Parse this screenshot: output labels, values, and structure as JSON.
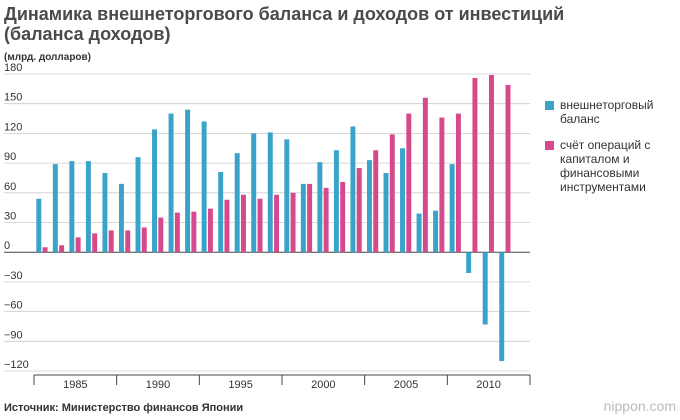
{
  "header": {
    "title": "Динамика внешнеторгового баланса и доходов от инвестиций (баланса доходов)",
    "unit": "(млрд. долларов)"
  },
  "footer": {
    "source": "Источник: Министерство финансов Японии",
    "brand": "nippon.com"
  },
  "colors": {
    "trade": "#3aa3c9",
    "capital": "#d6498c",
    "axis": "#444444",
    "grid": "#cccccc"
  },
  "chart_data": {
    "type": "bar",
    "title": "Динамика внешнеторгового баланса и доходов от инвестиций (баланса доходов)",
    "ylabel": "(млрд. долларов)",
    "xlabel": "",
    "ylim": [
      -120,
      180
    ],
    "yticks": [
      180,
      150,
      120,
      90,
      60,
      30,
      0,
      -30,
      -60,
      -90,
      -120
    ],
    "ytick_labels": [
      "180",
      "150",
      "120",
      "90",
      "60",
      "30",
      "0",
      "−30",
      "−60",
      "−90",
      "−120"
    ],
    "categories": [
      1983,
      1984,
      1985,
      1986,
      1987,
      1988,
      1989,
      1990,
      1991,
      1992,
      1993,
      1994,
      1995,
      1996,
      1997,
      1998,
      1999,
      2000,
      2001,
      2002,
      2003,
      2004,
      2005,
      2006,
      2007,
      2008,
      2009,
      2010,
      2011,
      2012
    ],
    "xtick_labels": [
      {
        "year": 1985,
        "label": "1985"
      },
      {
        "year": 1990,
        "label": "1990"
      },
      {
        "year": 1995,
        "label": "1995"
      },
      {
        "year": 2000,
        "label": "2000"
      },
      {
        "year": 2005,
        "label": "2005"
      },
      {
        "year": 2010,
        "label": "2010"
      }
    ],
    "xtick_boundaries": [
      1983,
      1988,
      1993,
      1998,
      2003,
      2008,
      2013
    ],
    "series": [
      {
        "name": "внешнеторговый баланс",
        "color_key": "trade",
        "values": [
          54,
          89,
          92,
          92,
          80,
          69,
          96,
          124,
          140,
          144,
          132,
          81,
          100,
          120,
          121,
          114,
          69,
          91,
          103,
          127,
          93,
          80,
          105,
          39,
          42,
          89,
          -21,
          -73,
          -110,
          null
        ]
      },
      {
        "name": "счёт операций с капиталом и финансовыми инструментами",
        "color_key": "capital",
        "values": [
          5,
          7,
          15,
          19,
          22,
          22,
          25,
          35,
          40,
          41,
          44,
          53,
          58,
          54,
          58,
          60,
          69,
          65,
          71,
          85,
          103,
          119,
          140,
          156,
          136,
          140,
          176,
          179,
          169,
          null
        ]
      }
    ]
  }
}
